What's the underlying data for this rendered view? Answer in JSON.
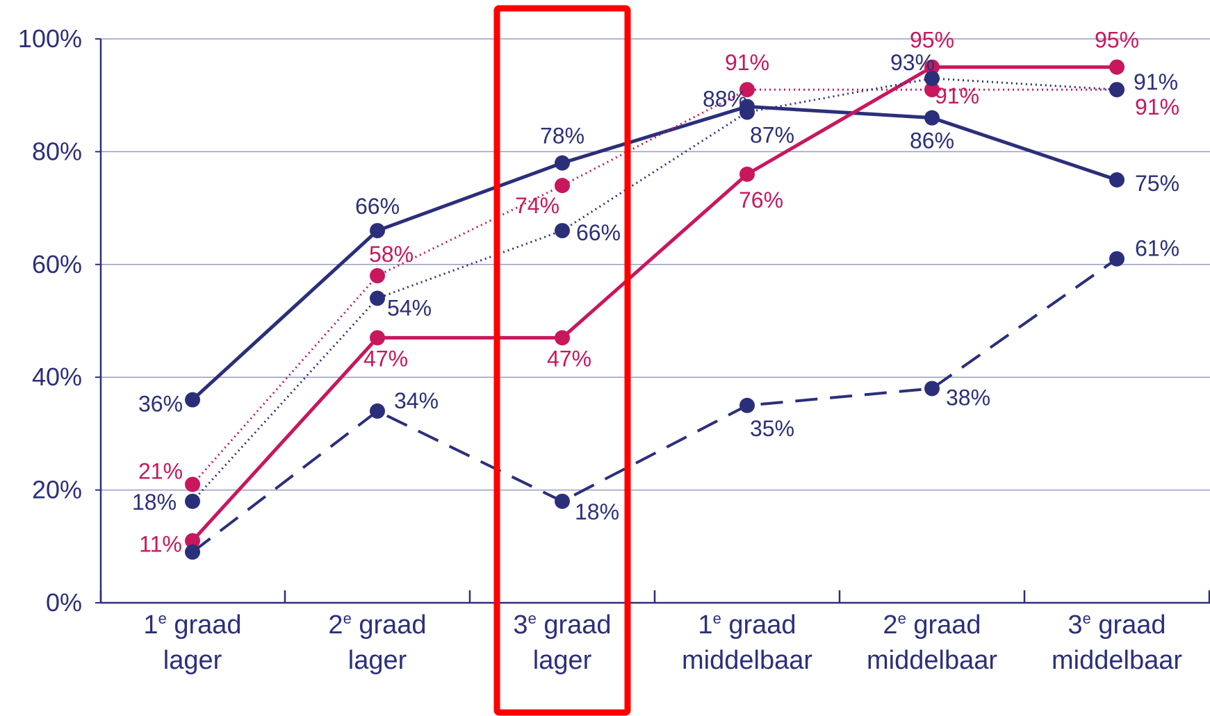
{
  "chart_data": {
    "type": "line",
    "title": "",
    "xlabel": "",
    "ylabel": "",
    "ylim": [
      0,
      100
    ],
    "y_ticks": [
      "0%",
      "20%",
      "40%",
      "60%",
      "80%",
      "100%"
    ],
    "grid": "horizontal",
    "categories": [
      {
        "ord": "1",
        "sup": "e",
        "rest": " graad",
        "line2": "lager"
      },
      {
        "ord": "2",
        "sup": "e",
        "rest": " graad",
        "line2": "lager"
      },
      {
        "ord": "3",
        "sup": "e",
        "rest": " graad",
        "line2": "lager"
      },
      {
        "ord": "1",
        "sup": "e",
        "rest": " graad",
        "line2": "middelbaar"
      },
      {
        "ord": "2",
        "sup": "e",
        "rest": " graad",
        "line2": "middelbaar"
      },
      {
        "ord": "3",
        "sup": "e",
        "rest": " graad",
        "line2": "middelbaar"
      }
    ],
    "highlighted_category_index": 2,
    "highlight_color": "#ff0000",
    "series": [
      {
        "values": [
          36,
          66,
          78,
          88,
          86,
          75
        ],
        "labels": [
          "36%",
          "66%",
          "78%",
          "88%",
          "86%",
          "75%"
        ],
        "color": "#2b2f7a",
        "style": "solid"
      },
      {
        "values": [
          11,
          47,
          47,
          76,
          95,
          95
        ],
        "labels": [
          "11%",
          "47%",
          "47%",
          "76%",
          "95%",
          "95%"
        ],
        "color": "#c8175d",
        "style": "solid"
      },
      {
        "values": [
          21,
          58,
          74,
          91,
          91,
          91
        ],
        "labels": [
          "21%",
          "58%",
          "74%",
          "91%",
          "91%",
          "91%"
        ],
        "color": "#c8175d",
        "style": "dotted"
      },
      {
        "values": [
          18,
          54,
          66,
          87,
          93,
          91
        ],
        "labels": [
          "18%",
          "54%",
          "66%",
          "87%",
          "93%",
          "91%"
        ],
        "color": "#2b2f7a",
        "style": "dotted"
      },
      {
        "values": [
          9,
          34,
          18,
          35,
          38,
          61
        ],
        "labels": [
          "",
          "34%",
          "18%",
          "35%",
          "38%",
          "61%"
        ],
        "color": "#2b2f7a",
        "style": "dashed"
      }
    ]
  }
}
